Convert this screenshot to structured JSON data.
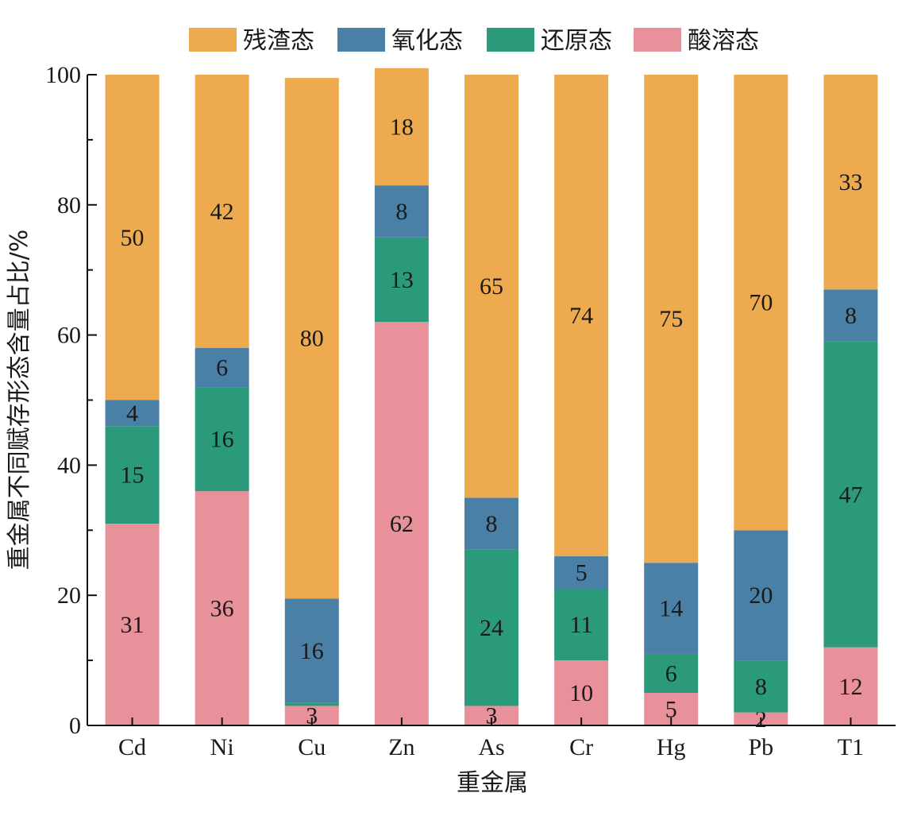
{
  "chart_data": {
    "type": "bar",
    "stacked": true,
    "categories": [
      "Cd",
      "Ni",
      "Cu",
      "Zn",
      "As",
      "Cr",
      "Hg",
      "Pb",
      "T1"
    ],
    "series": [
      {
        "name": "酸溶态",
        "color": "#e8919b",
        "values": [
          31,
          36,
          3,
          62,
          3,
          10,
          5,
          2,
          12
        ]
      },
      {
        "name": "还原态",
        "color": "#2a9a7b",
        "values": [
          15,
          16,
          0.5,
          13,
          24,
          11,
          6,
          8,
          47
        ]
      },
      {
        "name": "氧化态",
        "color": "#4a7fa6",
        "values": [
          4,
          6,
          16,
          8,
          8,
          5,
          14,
          20,
          8
        ]
      },
      {
        "name": "残渣态",
        "color": "#eeaa4e",
        "values": [
          50,
          42,
          80,
          18,
          65,
          74,
          75,
          70,
          33
        ]
      }
    ],
    "data_labels": [
      [
        "31",
        "36",
        "3",
        "62",
        "3",
        "10",
        "5",
        "2",
        "12"
      ],
      [
        "15",
        "16",
        "",
        "13",
        "24",
        "11",
        "6",
        "8",
        "47"
      ],
      [
        "4",
        "6",
        "16",
        "8",
        "8",
        "5",
        "14",
        "20",
        "8"
      ],
      [
        "50",
        "42",
        "80",
        "18",
        "65",
        "74",
        "75",
        "70",
        "33"
      ]
    ],
    "legend_order": [
      "残渣态",
      "氧化态",
      "还原态",
      "酸溶态"
    ],
    "legend_position": "top",
    "xlabel": "重金属",
    "ylabel": "重金属不同赋存形态含量占比/%",
    "ylim": [
      0,
      100
    ],
    "yticks": [
      0,
      20,
      40,
      60,
      80,
      100
    ],
    "grid": false
  }
}
